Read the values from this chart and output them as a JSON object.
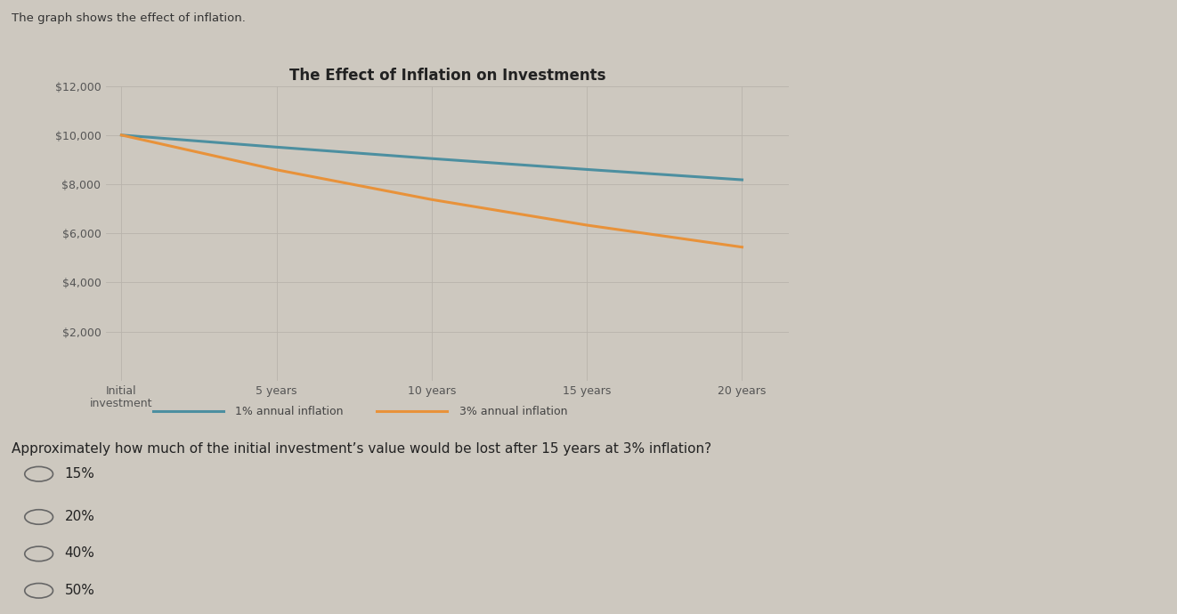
{
  "title": "The Effect of Inflation on Investments",
  "subtitle": "The graph shows the effect of inflation.",
  "x_labels": [
    "Initial\ninvestment",
    "5 years",
    "10 years",
    "15 years",
    "20 years"
  ],
  "x_values": [
    0,
    1,
    2,
    3,
    4
  ],
  "inflation_1pct": [
    10000,
    9509.9,
    9043.8,
    8600.6,
    8179.7
  ],
  "inflation_3pct": [
    10000,
    8587.3,
    7374.2,
    6332.9,
    5438.4
  ],
  "line_color_1pct": "#4c8fa0",
  "line_color_3pct": "#e8923a",
  "legend_1pct": "1% annual inflation",
  "legend_3pct": "3% annual inflation",
  "ylim": [
    0,
    12000
  ],
  "yticks": [
    2000,
    4000,
    6000,
    8000,
    10000,
    12000
  ],
  "ytick_labels": [
    "$2,000",
    "$4,000",
    "$6,000",
    "$8,000",
    "$10,000",
    "$12,000"
  ],
  "background_color": "#cdc8bf",
  "plot_bg_color": "#cdc8bf",
  "grid_color": "#b8b3ab",
  "question_text": "Approximately how much of the initial investment’s value would be lost after 15 years at 3% inflation?",
  "options": [
    "15%",
    "20%",
    "40%",
    "50%"
  ],
  "title_fontsize": 12,
  "tick_fontsize": 9,
  "legend_fontsize": 9,
  "question_fontsize": 11,
  "option_fontsize": 11
}
